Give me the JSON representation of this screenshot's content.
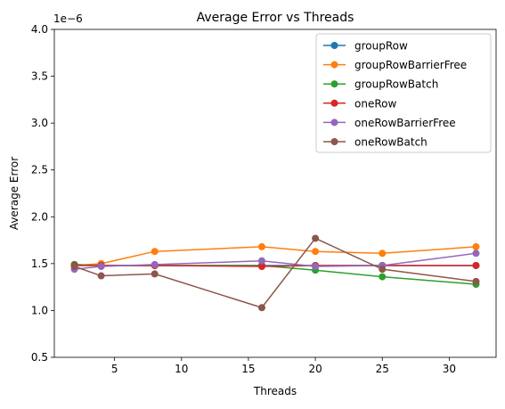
{
  "chart_data": {
    "type": "line",
    "title": "Average Error vs Threads",
    "xlabel": "Threads",
    "ylabel": "Average Error",
    "y_offset_label": "1e−6",
    "xlim": [
      0.5,
      33.5
    ],
    "ylim": [
      0.5,
      4.0
    ],
    "x_ticks": [
      5,
      10,
      15,
      20,
      25,
      30
    ],
    "y_ticks": [
      0.5,
      1.0,
      1.5,
      2.0,
      2.5,
      3.0,
      3.5,
      4.0
    ],
    "y_tick_labels": [
      "0.5",
      "1.0",
      "1.5",
      "2.0",
      "2.5",
      "3.0",
      "3.5",
      "4.0"
    ],
    "grid": false,
    "legend_position": "top-right",
    "x": [
      2,
      4,
      8,
      16,
      20,
      25,
      32
    ],
    "series": [
      {
        "name": "groupRow",
        "color": "#1f77b4",
        "values": [
          1.49,
          1.48,
          1.48,
          1.48,
          1.48,
          1.48,
          1.48
        ]
      },
      {
        "name": "groupRowBarrierFree",
        "color": "#ff7f0e",
        "values": [
          1.48,
          1.5,
          1.63,
          1.68,
          1.63,
          1.61,
          1.68
        ]
      },
      {
        "name": "groupRowBatch",
        "color": "#2ca02c",
        "values": [
          1.49,
          1.48,
          1.48,
          1.48,
          1.43,
          1.36,
          1.28
        ]
      },
      {
        "name": "oneRow",
        "color": "#d62728",
        "values": [
          1.48,
          1.48,
          1.48,
          1.47,
          1.48,
          1.48,
          1.48
        ]
      },
      {
        "name": "oneRowBarrierFree",
        "color": "#9467bd",
        "values": [
          1.44,
          1.47,
          1.49,
          1.53,
          1.47,
          1.48,
          1.61
        ]
      },
      {
        "name": "oneRowBatch",
        "color": "#8c564b",
        "values": [
          1.47,
          1.37,
          1.39,
          1.03,
          1.77,
          1.44,
          1.31
        ]
      }
    ]
  }
}
